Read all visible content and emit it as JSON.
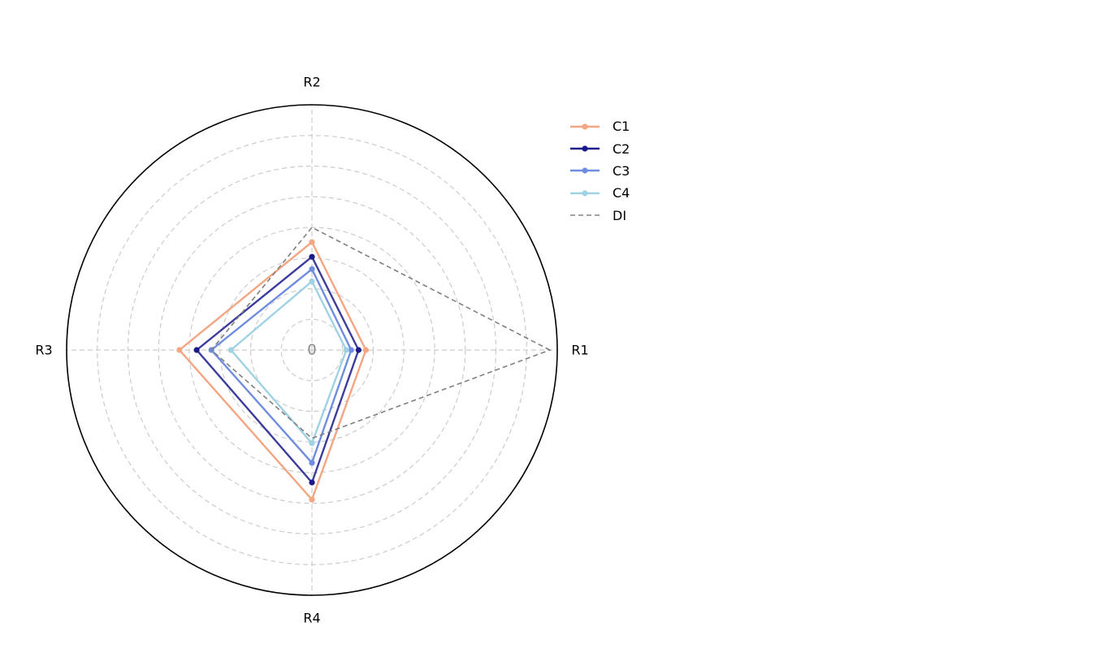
{
  "chart_data": {
    "type": "radar",
    "categories": [
      "R1",
      "R2",
      "R3",
      "R4"
    ],
    "center_label": "0",
    "rmax": 1.0,
    "grid_rings": [
      0.125,
      0.25,
      0.375,
      0.5,
      0.625,
      0.75,
      0.875
    ],
    "grid": true,
    "legend_position": "top-right",
    "series": [
      {
        "name": "C1",
        "values": [
          0.22,
          0.44,
          0.54,
          0.61
        ],
        "color": "#f4a582",
        "line_style": "solid",
        "marker": true
      },
      {
        "name": "C2",
        "values": [
          0.19,
          0.38,
          0.47,
          0.54
        ],
        "color": "#1a1a8c",
        "line_style": "solid",
        "marker": true
      },
      {
        "name": "C3",
        "values": [
          0.16,
          0.33,
          0.41,
          0.46
        ],
        "color": "#6f8de0",
        "line_style": "solid",
        "marker": true
      },
      {
        "name": "C4",
        "values": [
          0.14,
          0.28,
          0.33,
          0.38
        ],
        "color": "#9fd2e3",
        "line_style": "solid",
        "marker": true
      },
      {
        "name": "DI",
        "values": [
          0.97,
          0.5,
          0.41,
          0.36
        ],
        "color": "#808080",
        "line_style": "dashed",
        "marker": false
      }
    ]
  }
}
